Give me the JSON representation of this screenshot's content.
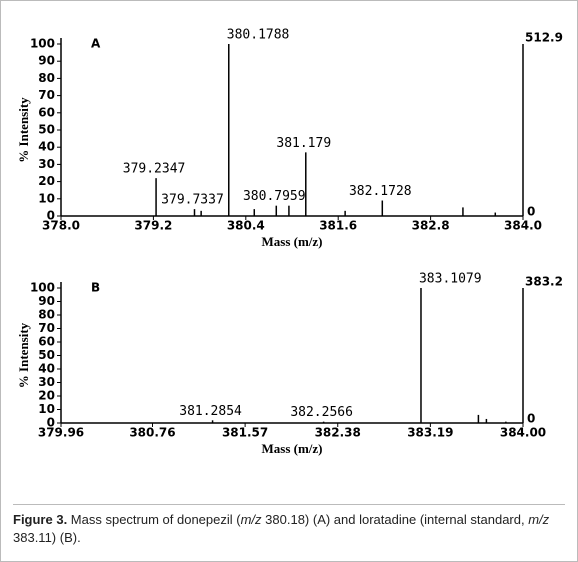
{
  "chart_data": [
    {
      "type": "spectrum",
      "panel": "A",
      "xlabel": "Mass (m/z)",
      "ylabel": "% Intensity",
      "scale_top": "512.9",
      "scale_bottom": "0",
      "xlim": [
        378.0,
        384.0
      ],
      "xticks": [
        {
          "value": 378.0,
          "label": "378.0"
        },
        379.2,
        380.4,
        381.6,
        {
          "value": 382.8,
          "label": "382.8"
        },
        {
          "value": 384.0,
          "label": "384.0"
        }
      ],
      "ylim": [
        0,
        100
      ],
      "yticks": [
        0,
        10,
        20,
        30,
        40,
        50,
        60,
        70,
        80,
        90,
        100
      ],
      "peaks": {
        "x": [
          379.2347,
          379.7337,
          380.1788,
          380.7959,
          381.179,
          382.1728
        ],
        "values": [
          22,
          4,
          100,
          6,
          37,
          9
        ]
      },
      "minor_peaks": {
        "x": [
          379.82,
          380.51,
          380.96,
          381.69,
          383.22,
          383.64
        ],
        "values": [
          3,
          4,
          6,
          3,
          5,
          2
        ]
      },
      "color": "#000000"
    },
    {
      "type": "spectrum",
      "panel": "B",
      "xlabel": "Mass (m/z)",
      "ylabel": "% Intensity",
      "scale_top": "383.2",
      "scale_bottom": "0",
      "xlim": [
        379.96,
        384.0
      ],
      "xticks": [
        379.96,
        380.76,
        381.57,
        382.38,
        383.19,
        {
          "value": 384.0,
          "label": "384.00"
        }
      ],
      "ylim": [
        0,
        100
      ],
      "yticks": [
        0,
        10,
        20,
        30,
        40,
        50,
        60,
        70,
        80,
        90,
        100
      ],
      "peaks": {
        "x": [
          381.2854,
          382.2566,
          383.1079
        ],
        "values": [
          2,
          1,
          100
        ]
      },
      "minor_peaks": {
        "x": [
          383.61,
          383.68,
          383.85
        ],
        "values": [
          6,
          3,
          1
        ]
      },
      "color": "#000000"
    }
  ],
  "caption": {
    "label": "Figure 3.",
    "parts": [
      " Mass spectrum of donepezil (",
      "m/z",
      " 380.18) (A) and loratadine (internal standard, ",
      "m/z",
      " 383.11) (B)."
    ]
  }
}
